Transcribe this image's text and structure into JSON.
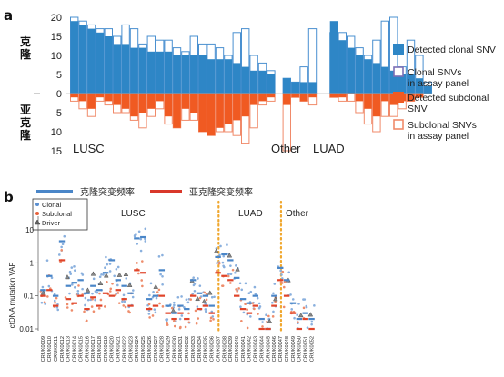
{
  "panel_a": {
    "label": "a",
    "ylabel_top": "克\n隆",
    "ylabel_bottom": "亚\n克\n隆",
    "group_labels": [
      "LUSC",
      "Other",
      "LUAD"
    ],
    "legend": [
      {
        "label": "Detected clonal SNV",
        "color": "#2e86c6",
        "style": "filled"
      },
      {
        "label": "Clonal SNVs\nin assay panel",
        "color": "#7b6fb5",
        "style": "outline"
      },
      {
        "label": "Detected subclonal\nSNV",
        "color": "#f05a22",
        "style": "filled"
      },
      {
        "label": "Subclonal SNVs\nin assay panel",
        "color": "#f08a6a",
        "style": "outline"
      }
    ],
    "colors": {
      "clonal": "#2e86c6",
      "clonal_outline": "#4a90d0",
      "subclonal": "#f05a22",
      "subclonal_outline": "#f08a6a"
    }
  },
  "panel_b": {
    "label": "b",
    "legend_top": [
      {
        "label": "克隆突变频率",
        "color": "#4a86c8"
      },
      {
        "label": "亚克隆突变频率",
        "color": "#d9382a"
      }
    ],
    "legend_box": [
      {
        "label": "Clonal",
        "color": "#5b8fd0",
        "symbol": "dot"
      },
      {
        "label": "Subclonal",
        "color": "#e7603a",
        "symbol": "dot"
      },
      {
        "label": "Driver",
        "color": "#444444",
        "symbol": "triangle"
      }
    ],
    "group_labels": [
      "LUSC",
      "LUAD",
      "Other"
    ],
    "ylabel": "ctDNA mutation VAF",
    "colors": {
      "clonal": "#4a86c8",
      "subclonal": "#e0442a",
      "divider": "#f0a830"
    }
  },
  "chart_data": [
    {
      "type": "bar",
      "title": "",
      "ylabel": "",
      "ylim": [
        -15,
        20
      ],
      "yticks_top": [
        0,
        5,
        10,
        15,
        20
      ],
      "yticks_bottom": [
        5,
        10,
        15
      ],
      "groups": [
        {
          "name": "LUSC",
          "start": 0,
          "end": 23
        },
        {
          "name": "Other",
          "start": 24,
          "end": 27
        },
        {
          "name": "LUAD",
          "start": 28,
          "end": 39
        }
      ],
      "series": [
        {
          "name": "Detected clonal SNV",
          "values": [
            19,
            18,
            17,
            16,
            15,
            13,
            13,
            12,
            12,
            11,
            11,
            11,
            10,
            10,
            10,
            10,
            9,
            9,
            9,
            8,
            7,
            6,
            6,
            5,
            4,
            3,
            3,
            3,
            19,
            14,
            12,
            10,
            9,
            8,
            7,
            6,
            5,
            5,
            4,
            2
          ]
        },
        {
          "name": "Clonal SNVs in assay panel",
          "values": [
            20,
            19,
            18,
            17,
            17,
            15,
            18,
            17,
            13,
            15,
            14,
            14,
            12,
            11,
            15,
            13,
            13,
            12,
            10,
            16,
            17,
            10,
            8,
            6,
            4,
            3,
            7,
            17,
            16,
            16,
            15,
            12,
            10,
            14,
            19,
            20,
            7,
            14,
            10,
            3
          ]
        },
        {
          "name": "Detected subclonal SNV",
          "values": [
            1,
            2,
            4,
            1,
            2,
            3,
            4,
            6,
            5,
            4,
            2,
            6,
            9,
            4,
            5,
            10,
            11,
            9,
            8,
            7,
            6,
            3,
            2,
            1,
            3,
            1,
            2,
            1,
            1,
            1,
            0,
            2,
            4,
            6,
            2,
            3,
            2,
            2,
            1,
            0
          ]
        },
        {
          "name": "Subclonal SNVs in assay panel",
          "values": [
            2,
            4,
            6,
            2,
            3,
            5,
            5,
            7,
            9,
            6,
            4,
            8,
            9,
            7,
            7,
            10,
            11,
            10,
            10,
            11,
            13,
            9,
            3,
            2,
            15,
            1,
            2,
            3,
            1,
            2,
            2,
            5,
            8,
            10,
            6,
            6,
            4,
            2,
            1,
            0
          ]
        }
      ]
    },
    {
      "type": "scatter",
      "title": "",
      "ylabel": "ctDNA mutation VAF",
      "yscale": "log",
      "ylim": [
        0.01,
        20
      ],
      "yticks": [
        "0.01",
        "0.1",
        "1",
        "10"
      ],
      "x": [
        "CRUK0009",
        "CRUK0010",
        "CRUK0011",
        "CRUK0012",
        "CRUK0013",
        "CRUK0014",
        "CRUK0015",
        "CRUK0016",
        "CRUK0017",
        "CRUK0018",
        "CRUK0019",
        "CRUK0020",
        "CRUK0021",
        "CRUK0022",
        "CRUK0023",
        "CRUK0024",
        "CRUK0025",
        "CRUK0026",
        "CRUK0027",
        "CRUK0028",
        "CRUK0029",
        "CRUK0030",
        "CRUK0031",
        "CRUK0032",
        "CRUK0033",
        "CRUK0034",
        "CRUK0035",
        "CRUK0036",
        "CRUK0037",
        "CRUK0038",
        "CRUK0039",
        "CRUK0040",
        "CRUK0041",
        "CRUK0042",
        "CRUK0043",
        "CRUK0044",
        "CRUK0045",
        "CRUK0046",
        "CRUK0047",
        "CRUK0048",
        "CRUK0049",
        "CRUK0050",
        "CRUK0051",
        "CRUK0052"
      ],
      "series": [
        {
          "name": "克隆突变频率",
          "values": [
            0.15,
            0.4,
            0.1,
            4.5,
            0.2,
            0.25,
            0.3,
            0.12,
            0.2,
            0.15,
            0.5,
            1.2,
            0.3,
            0.2,
            0.12,
            5.5,
            6.0,
            0.08,
            0.1,
            0.6,
            0.05,
            0.03,
            0.05,
            0.04,
            0.3,
            0.12,
            0.1,
            0.05,
            1.5,
            1.8,
            1.2,
            0.35,
            0.08,
            0.06,
            0.1,
            0.02,
            0.01,
            0.1,
            0.7,
            0.3,
            0.06,
            0.02,
            0.03,
            0.02
          ]
        },
        {
          "name": "亚克隆突变频率",
          "values": [
            0.1,
            0.15,
            0.05,
            1.2,
            0.08,
            0.06,
            0.1,
            0.04,
            0.09,
            0.05,
            0.12,
            0.1,
            0.15,
            0.08,
            0.05,
            0.6,
            0.5,
            0.04,
            0.05,
            0.1,
            0.03,
            0.02,
            0.03,
            0.02,
            0.1,
            0.04,
            0.05,
            0.03,
            0.5,
            0.4,
            0.3,
            0.1,
            0.04,
            0.03,
            0.05,
            0.01,
            0.01,
            0.05,
            0.3,
            0.1,
            0.03,
            0.01,
            0.02,
            0.01
          ]
        }
      ]
    }
  ]
}
